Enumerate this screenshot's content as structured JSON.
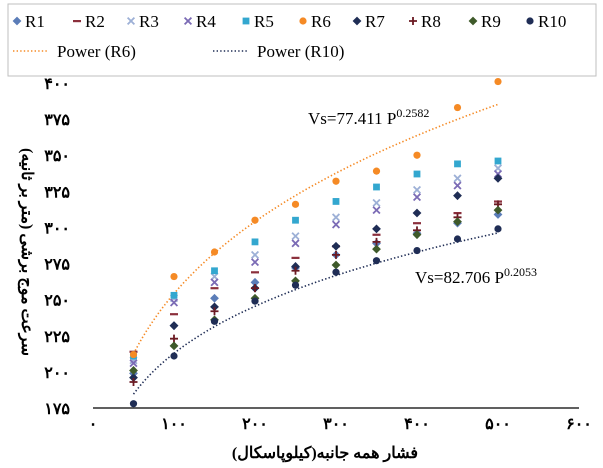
{
  "chart_data": {
    "type": "scatter",
    "xlabel": "فشار همه جانبه(کیلوپاسکال)",
    "ylabel": "سرعت موج برشی (متر بر ثانیه)",
    "xlim": [
      0,
      600
    ],
    "ylim": [
      175,
      400
    ],
    "x_tick_labels": [
      "۰",
      "۱۰۰",
      "۲۰۰",
      "۳۰۰",
      "۴۰۰",
      "۵۰۰",
      "۶۰۰"
    ],
    "y_tick_labels": [
      "۱۷۵",
      "۲۰۰",
      "۲۲۵",
      "۲۵۰",
      "۲۷۵",
      "۳۰۰",
      "۳۲۵",
      "۳۵۰",
      "۳۷۵",
      "۴۰۰"
    ],
    "x_tick_values": [
      0,
      100,
      200,
      300,
      400,
      500,
      600
    ],
    "y_tick_values": [
      175,
      200,
      225,
      250,
      275,
      300,
      325,
      350,
      375,
      400
    ],
    "x": [
      50,
      100,
      150,
      200,
      250,
      300,
      350,
      400,
      450,
      500
    ],
    "series": [
      {
        "name": "R1",
        "marker": "diamond",
        "color": "#5b7db8",
        "values": [
          199,
          232,
          251,
          262,
          272,
          281,
          289,
          296,
          303,
          309
        ]
      },
      {
        "name": "R2",
        "marker": "dash",
        "color": "#8b2f3c",
        "values": [
          214,
          240,
          258,
          269,
          279,
          287,
          295,
          303,
          310,
          318
        ]
      },
      {
        "name": "R3",
        "marker": "x",
        "color": "#9db0d6",
        "values": [
          208,
          251,
          266,
          281,
          294,
          307,
          317,
          326,
          334,
          341
        ]
      },
      {
        "name": "R4",
        "marker": "x",
        "color": "#7b6bb5",
        "values": [
          206,
          248,
          262,
          276,
          289,
          302,
          312,
          321,
          329,
          337
        ]
      },
      {
        "name": "R5",
        "marker": "square",
        "color": "#33a7cf",
        "values": [
          211,
          253,
          270,
          290,
          305,
          318,
          328,
          337,
          344,
          346
        ]
      },
      {
        "name": "R6",
        "marker": "circle",
        "color": "#f58a25",
        "values": [
          212,
          266,
          283,
          305,
          316,
          332,
          339,
          350,
          383,
          401
        ]
      },
      {
        "name": "R7",
        "marker": "diamond",
        "color": "#1f2d55",
        "values": [
          196,
          232,
          245,
          258,
          273,
          287,
          299,
          310,
          322,
          334
        ]
      },
      {
        "name": "R8",
        "marker": "plus",
        "color": "#6b1a22",
        "values": [
          193,
          223,
          242,
          258,
          270,
          281,
          290,
          298,
          307,
          316
        ]
      },
      {
        "name": "R9",
        "marker": "diamond",
        "color": "#3e5a2a",
        "values": [
          201,
          218,
          236,
          251,
          263,
          274,
          285,
          295,
          304,
          312
        ]
      },
      {
        "name": "R10",
        "marker": "circle",
        "color": "#1f2d55",
        "values": [
          178,
          211,
          235,
          249,
          260,
          269,
          277,
          284,
          292,
          299
        ]
      }
    ],
    "trendlines": [
      {
        "name": "Power (R6)",
        "style": "dotted",
        "color": "#f58a25",
        "a": 77.411,
        "b": 0.2582
      },
      {
        "name": "Power (R10)",
        "style": "dotted",
        "color": "#1f2d55",
        "a": 82.706,
        "b": 0.2053
      }
    ],
    "annotations": [
      {
        "base": "Vs=77.411 P",
        "exp": "0.2582"
      },
      {
        "base": "Vs=82.706 P",
        "exp": "0.2053"
      }
    ],
    "legend_position": "top",
    "grid": false
  }
}
